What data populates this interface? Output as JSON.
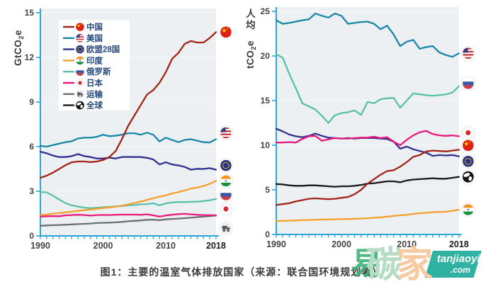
{
  "page": {
    "caption": "图1：主要的温室气体排放国家（来源：联合国环境规划署）"
  },
  "watermark": {
    "mark": "易",
    "char_green": "碳",
    "char_orange": "家",
    "brand": "tanjiaoyi",
    "tld": ".com",
    "colors": {
      "mark": "#3eb478",
      "green": "#b7dcc4",
      "orange": "#f7caa2",
      "band": "#2fb2a1",
      "text": "#ffffff"
    }
  },
  "colors": {
    "axis": "#2aa7d9",
    "plot_bg": "#edf0f3",
    "gridline": "#ffffff",
    "tick_label": "#454547",
    "tick_label_bold": "#1c1a1d",
    "axis_title": "#3a3a3c",
    "legend_text": "#264a7d",
    "series": {
      "china": "#a32418",
      "usa": "#1886a7",
      "eu28": "#30318f",
      "india": "#f5a02c",
      "russia": "#57c1a8",
      "japan": "#e91a7d",
      "transport": "#6e6f71",
      "global": "#1a1a1a"
    }
  },
  "legend": {
    "items": [
      {
        "key": "china",
        "label": "中国",
        "icon": "china-flag"
      },
      {
        "key": "usa",
        "label": "美国",
        "icon": "usa-flag"
      },
      {
        "key": "eu28",
        "label": "欧盟28国",
        "icon": "eu-flag"
      },
      {
        "key": "india",
        "label": "印度",
        "icon": "india-flag"
      },
      {
        "key": "russia",
        "label": "俄罗斯",
        "icon": "russia-flag"
      },
      {
        "key": "japan",
        "label": "日本",
        "icon": "japan-flag"
      },
      {
        "key": "transport",
        "label": "运输",
        "icon": "truck-icon"
      },
      {
        "key": "global",
        "label": "全球",
        "icon": "globe-icon"
      }
    ]
  },
  "chart_data": [
    {
      "type": "line",
      "panel": "total-emissions",
      "ylabel": "GtCO2e",
      "x_start": 1990,
      "x_end": 2018,
      "xticks": [
        1990,
        2000,
        2010,
        2018
      ],
      "yticks": [
        0,
        3,
        6,
        9,
        12,
        15
      ],
      "ylim": [
        0,
        15
      ],
      "grid": true,
      "series": [
        {
          "key": "transport",
          "label": "运输",
          "icon": "truck-icon",
          "values": [
            0.68,
            0.7,
            0.72,
            0.73,
            0.75,
            0.77,
            0.79,
            0.81,
            0.83,
            0.86,
            0.88,
            0.89,
            0.91,
            0.94,
            0.98,
            1.01,
            1.04,
            1.08,
            1.09,
            1.05,
            1.11,
            1.14,
            1.16,
            1.19,
            1.22,
            1.26,
            1.29,
            1.33,
            1.37
          ]
        },
        {
          "key": "japan",
          "label": "日本",
          "icon": "japan-flag",
          "values": [
            1.3,
            1.32,
            1.33,
            1.32,
            1.38,
            1.4,
            1.42,
            1.4,
            1.36,
            1.4,
            1.41,
            1.4,
            1.42,
            1.43,
            1.43,
            1.43,
            1.42,
            1.45,
            1.38,
            1.3,
            1.37,
            1.42,
            1.46,
            1.48,
            1.45,
            1.42,
            1.4,
            1.39,
            1.38
          ]
        },
        {
          "key": "russia",
          "label": "俄罗斯",
          "icon": "russia-flag",
          "values": [
            2.95,
            2.93,
            2.7,
            2.45,
            2.2,
            2.05,
            1.97,
            1.9,
            1.86,
            1.89,
            1.93,
            1.95,
            1.98,
            2.0,
            2.05,
            2.07,
            2.12,
            2.14,
            2.19,
            2.05,
            2.18,
            2.25,
            2.28,
            2.27,
            2.29,
            2.3,
            2.34,
            2.39,
            2.48
          ]
        },
        {
          "key": "india",
          "label": "印度",
          "icon": "india-flag",
          "values": [
            1.4,
            1.44,
            1.49,
            1.53,
            1.58,
            1.63,
            1.68,
            1.73,
            1.77,
            1.82,
            1.87,
            1.91,
            1.96,
            2.03,
            2.12,
            2.21,
            2.31,
            2.42,
            2.53,
            2.64,
            2.72,
            2.85,
            2.95,
            3.05,
            3.18,
            3.25,
            3.35,
            3.5,
            3.7
          ]
        },
        {
          "key": "eu28",
          "label": "欧盟28国",
          "icon": "eu-flag",
          "values": [
            5.65,
            5.55,
            5.4,
            5.3,
            5.3,
            5.36,
            5.5,
            5.36,
            5.3,
            5.2,
            5.2,
            5.26,
            5.2,
            5.3,
            5.31,
            5.3,
            5.3,
            5.25,
            5.14,
            4.8,
            4.95,
            4.8,
            4.74,
            4.64,
            4.45,
            4.51,
            4.5,
            4.55,
            4.45
          ]
        },
        {
          "key": "usa",
          "label": "美国",
          "icon": "usa-flag",
          "values": [
            6.05,
            6.0,
            6.1,
            6.2,
            6.3,
            6.36,
            6.55,
            6.6,
            6.6,
            6.66,
            6.8,
            6.7,
            6.74,
            6.8,
            6.9,
            6.9,
            6.8,
            6.94,
            6.8,
            6.35,
            6.6,
            6.45,
            6.3,
            6.45,
            6.5,
            6.4,
            6.3,
            6.28,
            6.5
          ]
        },
        {
          "key": "china",
          "label": "中国",
          "icon": "china-flag",
          "values": [
            3.9,
            4.05,
            4.25,
            4.5,
            4.75,
            4.95,
            5.0,
            5.0,
            4.96,
            5.0,
            5.1,
            5.3,
            5.7,
            6.5,
            7.4,
            8.1,
            8.8,
            9.5,
            9.8,
            10.3,
            11.0,
            11.9,
            12.3,
            12.9,
            13.1,
            13.0,
            13.0,
            13.3,
            13.7
          ]
        }
      ]
    },
    {
      "type": "line",
      "panel": "per-capita-emissions",
      "ylabel_upright": "人均",
      "ylabel": "tCO2e",
      "x_start": 1990,
      "x_end": 2018,
      "xticks": [
        1990,
        2000,
        2010,
        2018
      ],
      "yticks": [
        0,
        5,
        10,
        15,
        20,
        25
      ],
      "ylim": [
        0,
        25
      ],
      "grid": true,
      "series": [
        {
          "key": "india",
          "label": "印度",
          "icon": "india-flag",
          "values": [
            1.5,
            1.52,
            1.55,
            1.57,
            1.6,
            1.62,
            1.65,
            1.67,
            1.68,
            1.7,
            1.72,
            1.73,
            1.75,
            1.78,
            1.82,
            1.87,
            1.92,
            2.0,
            2.07,
            2.15,
            2.2,
            2.3,
            2.38,
            2.42,
            2.5,
            2.52,
            2.55,
            2.65,
            2.78
          ]
        },
        {
          "key": "usa",
          "label": "美国",
          "icon": "usa-flag",
          "values": [
            24.0,
            23.6,
            23.7,
            23.85,
            24.0,
            24.1,
            24.75,
            24.5,
            24.3,
            24.75,
            24.5,
            23.6,
            23.7,
            23.8,
            23.85,
            23.6,
            23.0,
            23.4,
            22.4,
            21.1,
            21.6,
            21.8,
            20.8,
            21.0,
            21.1,
            20.4,
            20.1,
            19.9,
            20.3
          ]
        },
        {
          "key": "russia",
          "label": "俄罗斯",
          "icon": "russia-flag",
          "values": [
            20.2,
            19.8,
            18.0,
            16.4,
            14.7,
            14.35,
            14.0,
            13.3,
            12.5,
            13.35,
            13.6,
            13.7,
            13.9,
            13.4,
            14.85,
            14.7,
            15.15,
            15.25,
            15.3,
            14.2,
            15.0,
            15.8,
            15.7,
            15.6,
            15.55,
            15.6,
            15.7,
            15.9,
            16.6
          ]
        },
        {
          "key": "eu28",
          "label": "欧盟28国",
          "icon": "eu-flag",
          "values": [
            11.85,
            11.55,
            11.2,
            11.0,
            10.9,
            11.05,
            11.3,
            11.05,
            10.85,
            10.8,
            10.75,
            10.8,
            10.75,
            10.8,
            10.8,
            10.8,
            10.75,
            10.7,
            10.4,
            9.6,
            9.85,
            9.55,
            9.35,
            9.15,
            8.8,
            8.9,
            8.85,
            8.9,
            8.75
          ]
        },
        {
          "key": "japan",
          "label": "日本",
          "icon": "japan-flag",
          "values": [
            10.3,
            10.3,
            10.35,
            10.3,
            10.7,
            11.0,
            11.05,
            10.5,
            10.65,
            10.8,
            10.75,
            10.75,
            10.8,
            10.85,
            10.85,
            10.95,
            10.8,
            10.9,
            10.4,
            10.0,
            10.6,
            11.1,
            11.45,
            11.6,
            11.25,
            11.1,
            11.05,
            11.1,
            11.0
          ]
        },
        {
          "key": "global",
          "label": "全球",
          "icon": "globe-icon",
          "values": [
            5.65,
            5.6,
            5.5,
            5.45,
            5.45,
            5.5,
            5.5,
            5.45,
            5.4,
            5.35,
            5.4,
            5.4,
            5.45,
            5.55,
            5.7,
            5.75,
            5.85,
            5.95,
            5.95,
            5.85,
            6.05,
            6.15,
            6.2,
            6.25,
            6.3,
            6.25,
            6.25,
            6.35,
            6.45
          ]
        },
        {
          "key": "china",
          "label": "中国",
          "icon": "china-flag",
          "values": [
            3.3,
            3.4,
            3.5,
            3.7,
            3.85,
            4.0,
            4.05,
            4.0,
            3.95,
            4.0,
            4.1,
            4.2,
            4.5,
            5.0,
            5.7,
            6.2,
            6.7,
            7.1,
            7.2,
            7.6,
            8.1,
            8.7,
            8.9,
            9.3,
            9.4,
            9.35,
            9.3,
            9.4,
            9.5
          ]
        }
      ]
    }
  ]
}
